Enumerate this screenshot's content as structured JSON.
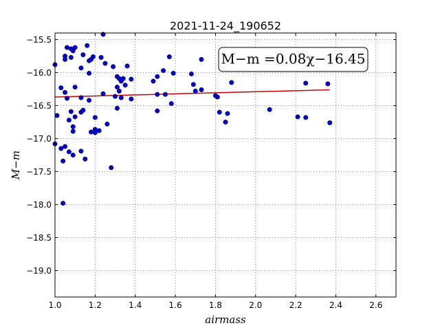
{
  "chart_data": {
    "type": "scatter",
    "title": "2021-11-24_190652",
    "xlabel": "airmass",
    "ylabel": "M−m",
    "xlim": [
      1.0,
      2.7
    ],
    "ylim": [
      -19.4,
      -15.4
    ],
    "y_inverted": true,
    "grid": true,
    "xticks": [
      "1.0",
      "1.2",
      "1.4",
      "1.6",
      "1.8",
      "2.0",
      "2.2",
      "2.4",
      "2.6"
    ],
    "xtick_values": [
      1.0,
      1.2,
      1.4,
      1.6,
      1.8,
      2.0,
      2.2,
      2.4,
      2.6
    ],
    "yticks": [
      "−15.5",
      "−16.0",
      "−16.5",
      "−17.0",
      "−17.5",
      "−18.0",
      "−18.5",
      "−19.0"
    ],
    "ytick_values": [
      -15.5,
      -16.0,
      -16.5,
      -17.0,
      -17.5,
      -18.0,
      -18.5,
      -19.0
    ],
    "annotation": "M−m =0.08χ−16.45",
    "annotation_placement": "top-right",
    "fit": {
      "slope": 0.08,
      "intercept": -16.45,
      "x_range": [
        1.0,
        2.37
      ],
      "color": "#cc0000"
    },
    "point_color": "#0000cc",
    "points": [
      [
        1.0,
        -15.88
      ],
      [
        1.0,
        -17.08
      ],
      [
        1.01,
        -16.65
      ],
      [
        1.03,
        -16.23
      ],
      [
        1.03,
        -17.15
      ],
      [
        1.04,
        -17.34
      ],
      [
        1.04,
        -17.98
      ],
      [
        1.05,
        -15.8
      ],
      [
        1.05,
        -15.75
      ],
      [
        1.05,
        -16.3
      ],
      [
        1.05,
        -17.12
      ],
      [
        1.06,
        -15.62
      ],
      [
        1.06,
        -16.39
      ],
      [
        1.07,
        -16.72
      ],
      [
        1.07,
        -17.2
      ],
      [
        1.08,
        -15.77
      ],
      [
        1.08,
        -16.59
      ],
      [
        1.08,
        -15.64
      ],
      [
        1.09,
        -16.82
      ],
      [
        1.09,
        -16.89
      ],
      [
        1.09,
        -17.25
      ],
      [
        1.09,
        -15.67
      ],
      [
        1.1,
        -15.62
      ],
      [
        1.1,
        -16.22
      ],
      [
        1.1,
        -16.67
      ],
      [
        1.13,
        -15.93
      ],
      [
        1.13,
        -16.38
      ],
      [
        1.13,
        -16.6
      ],
      [
        1.14,
        -16.57
      ],
      [
        1.13,
        -17.19
      ],
      [
        1.14,
        -15.73
      ],
      [
        1.15,
        -17.31
      ],
      [
        1.16,
        -15.59
      ],
      [
        1.17,
        -15.82
      ],
      [
        1.17,
        -16.42
      ],
      [
        1.18,
        -15.8
      ],
      [
        1.17,
        -16.01
      ],
      [
        1.18,
        -16.9
      ],
      [
        1.19,
        -15.76
      ],
      [
        1.2,
        -16.86
      ],
      [
        1.2,
        -16.68
      ],
      [
        1.22,
        -16.88
      ],
      [
        1.2,
        -16.91
      ],
      [
        1.23,
        -15.77
      ],
      [
        1.24,
        -15.42
      ],
      [
        1.24,
        -16.32
      ],
      [
        1.25,
        -15.86
      ],
      [
        1.26,
        -16.78
      ],
      [
        1.28,
        -17.44
      ],
      [
        1.29,
        -15.91
      ],
      [
        1.3,
        -16.36
      ],
      [
        1.31,
        -16.06
      ],
      [
        1.31,
        -16.22
      ],
      [
        1.31,
        -16.54
      ],
      [
        1.32,
        -16.09
      ],
      [
        1.32,
        -16.28
      ],
      [
        1.33,
        -16.13
      ],
      [
        1.34,
        -16.09
      ],
      [
        1.33,
        -16.38
      ],
      [
        1.35,
        -16.19
      ],
      [
        1.36,
        -15.9
      ],
      [
        1.38,
        -16.1
      ],
      [
        1.38,
        -16.4
      ],
      [
        1.49,
        -16.13
      ],
      [
        1.51,
        -16.06
      ],
      [
        1.51,
        -16.33
      ],
      [
        1.51,
        -16.58
      ],
      [
        1.54,
        -15.97
      ],
      [
        1.55,
        -16.33
      ],
      [
        1.57,
        -15.76
      ],
      [
        1.58,
        -16.47
      ],
      [
        1.59,
        -16.01
      ],
      [
        1.68,
        -16.02
      ],
      [
        1.69,
        -16.18
      ],
      [
        1.7,
        -16.28
      ],
      [
        1.73,
        -15.8
      ],
      [
        1.73,
        -16.26
      ],
      [
        1.8,
        -16.35
      ],
      [
        1.81,
        -16.37
      ],
      [
        1.82,
        -16.6
      ],
      [
        1.85,
        -16.75
      ],
      [
        1.86,
        -16.62
      ],
      [
        1.88,
        -16.15
      ],
      [
        2.07,
        -16.56
      ],
      [
        2.21,
        -16.67
      ],
      [
        2.25,
        -16.16
      ],
      [
        2.25,
        -16.68
      ],
      [
        2.36,
        -16.17
      ],
      [
        2.37,
        -16.76
      ]
    ]
  }
}
